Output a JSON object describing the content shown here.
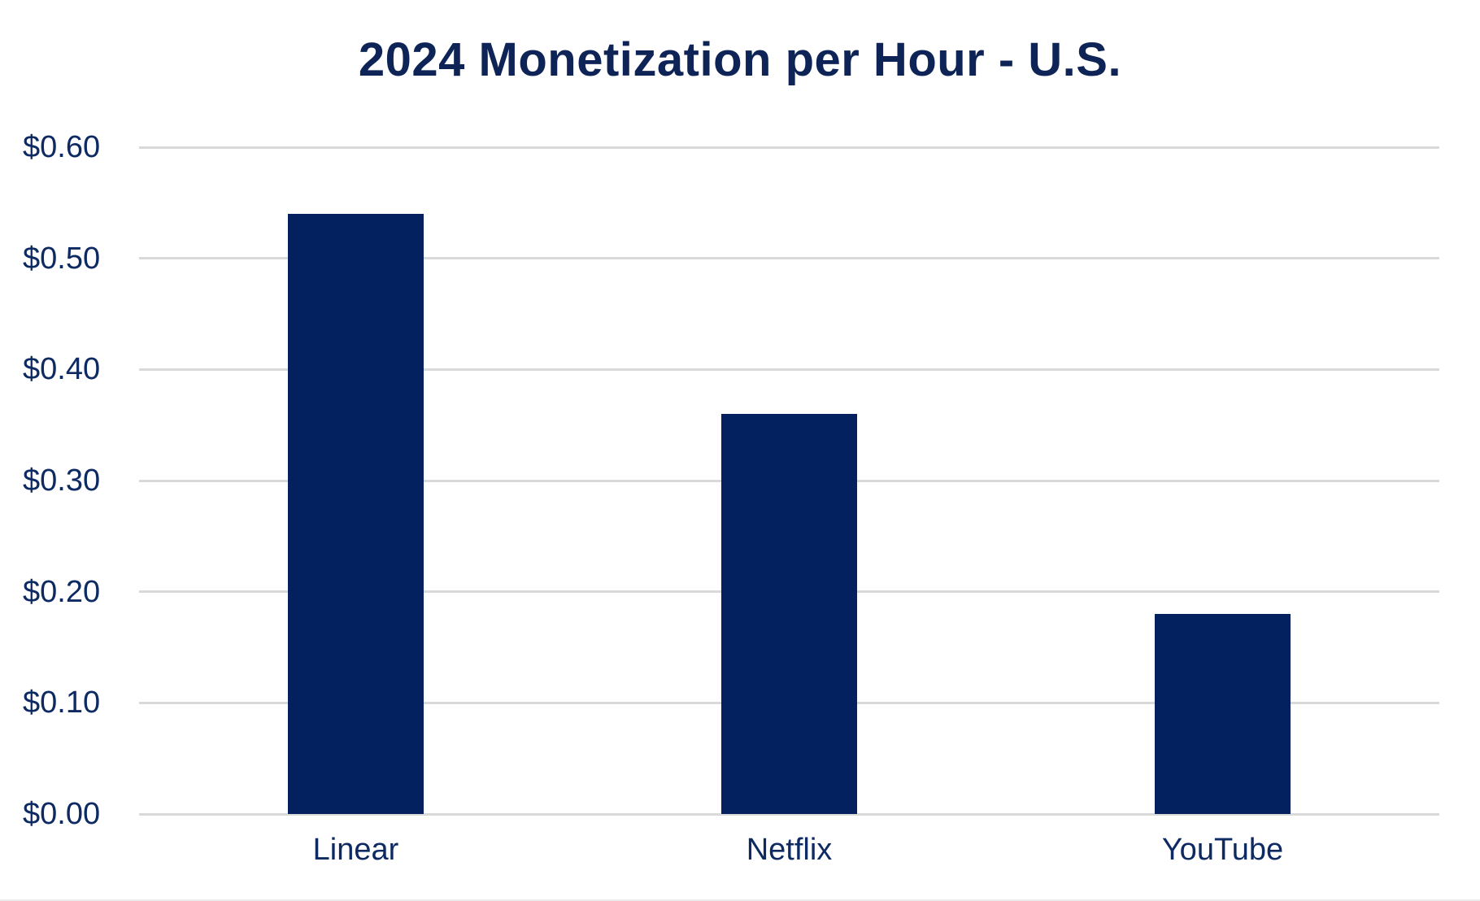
{
  "chart": {
    "title": "2024 Monetization per Hour - U.S."
  },
  "chart_data": {
    "type": "bar",
    "title": "2024 Monetization per Hour - U.S.",
    "categories": [
      "Linear",
      "Netflix",
      "YouTube"
    ],
    "values": [
      0.54,
      0.36,
      0.18
    ],
    "xlabel": "",
    "ylabel": "",
    "ylim": [
      0,
      0.6
    ],
    "yticks": [
      {
        "value": 0.6,
        "label": "$0.60"
      },
      {
        "value": 0.5,
        "label": "$0.50"
      },
      {
        "value": 0.4,
        "label": "$0.40"
      },
      {
        "value": 0.3,
        "label": "$0.30"
      },
      {
        "value": 0.2,
        "label": "$0.20"
      },
      {
        "value": 0.1,
        "label": "$0.10"
      },
      {
        "value": 0.0,
        "label": "$0.00"
      }
    ],
    "grid": true,
    "legend": false,
    "colors": {
      "bar": "#02215e",
      "gridline": "#d9d9d9",
      "title_text": "#0f2456",
      "axis_text": "#0d2a63",
      "background": "#ffffff"
    }
  }
}
